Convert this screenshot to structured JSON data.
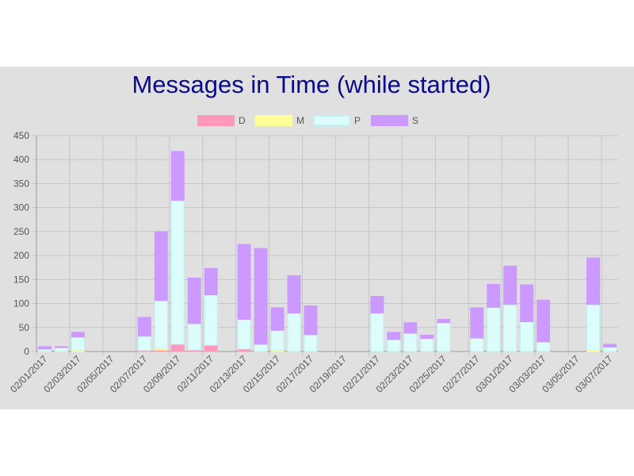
{
  "chart_data": {
    "type": "bar",
    "stacked": true,
    "title": "Messages in Time (while started)",
    "xlabel": "",
    "ylabel": "",
    "ylim": [
      0,
      450
    ],
    "yticks": [
      0,
      50,
      100,
      150,
      200,
      250,
      300,
      350,
      400,
      450
    ],
    "grid": true,
    "legend_position": "top-center",
    "categories": [
      "02/01/2017",
      "02/02/2017",
      "02/03/2017",
      "02/04/2017",
      "02/05/2017",
      "02/06/2017",
      "02/07/2017",
      "02/08/2017",
      "02/09/2017",
      "02/10/2017",
      "02/11/2017",
      "02/12/2017",
      "02/13/2017",
      "02/14/2017",
      "02/15/2017",
      "02/16/2017",
      "02/17/2017",
      "02/18/2017",
      "02/19/2017",
      "02/20/2017",
      "02/21/2017",
      "02/22/2017",
      "02/23/2017",
      "02/24/2017",
      "02/25/2017",
      "02/26/2017",
      "02/27/2017",
      "02/28/2017",
      "03/01/2017",
      "03/02/2017",
      "03/03/2017",
      "03/04/2017",
      "03/05/2017",
      "03/06/2017",
      "03/07/2017"
    ],
    "tick_labels": [
      "02/01/2017",
      "",
      "02/03/2017",
      "",
      "02/05/2017",
      "",
      "02/07/2017",
      "",
      "02/09/2017",
      "",
      "02/11/2017",
      "",
      "02/13/2017",
      "",
      "02/15/2017",
      "",
      "02/17/2017",
      "",
      "02/19/2017",
      "",
      "02/21/2017",
      "",
      "02/23/2017",
      "",
      "02/25/2017",
      "",
      "02/27/2017",
      "",
      "03/01/2017",
      "",
      "03/03/2017",
      "",
      "03/05/2017",
      "",
      "03/07/2017"
    ],
    "series": [
      {
        "name": "D",
        "color": "#ff99bb",
        "border": "#ff99bb",
        "values": [
          0,
          0,
          0,
          0,
          0,
          0,
          2,
          3,
          15,
          3,
          13,
          0,
          5,
          0,
          0,
          0,
          0,
          0,
          0,
          0,
          0,
          0,
          0,
          0,
          0,
          0,
          0,
          0,
          0,
          0,
          0,
          0,
          0,
          0,
          0
        ]
      },
      {
        "name": "M",
        "color": "#ffff99",
        "border": "#ffff99",
        "values": [
          0,
          0,
          2,
          0,
          0,
          0,
          0,
          3,
          0,
          0,
          0,
          0,
          0,
          0,
          2,
          0,
          0,
          0,
          0,
          0,
          0,
          0,
          0,
          0,
          0,
          0,
          0,
          0,
          0,
          0,
          0,
          0,
          0,
          3,
          0
        ]
      },
      {
        "name": "P",
        "color": "#ddfdfd",
        "border": "#bff3f3",
        "values": [
          5,
          8,
          28,
          0,
          0,
          0,
          30,
          100,
          300,
          55,
          105,
          0,
          62,
          15,
          42,
          80,
          35,
          0,
          0,
          0,
          80,
          25,
          38,
          27,
          60,
          0,
          28,
          92,
          98,
          62,
          20,
          0,
          0,
          95,
          9
        ]
      },
      {
        "name": "S",
        "color": "#cc99ff",
        "border": "#cc99ff",
        "values": [
          5,
          2,
          10,
          0,
          0,
          0,
          39,
          144,
          102,
          95,
          55,
          0,
          156,
          200,
          47,
          78,
          60,
          0,
          0,
          0,
          35,
          15,
          22,
          7,
          7,
          0,
          63,
          48,
          80,
          77,
          87,
          0,
          0,
          97,
          6
        ]
      }
    ]
  }
}
